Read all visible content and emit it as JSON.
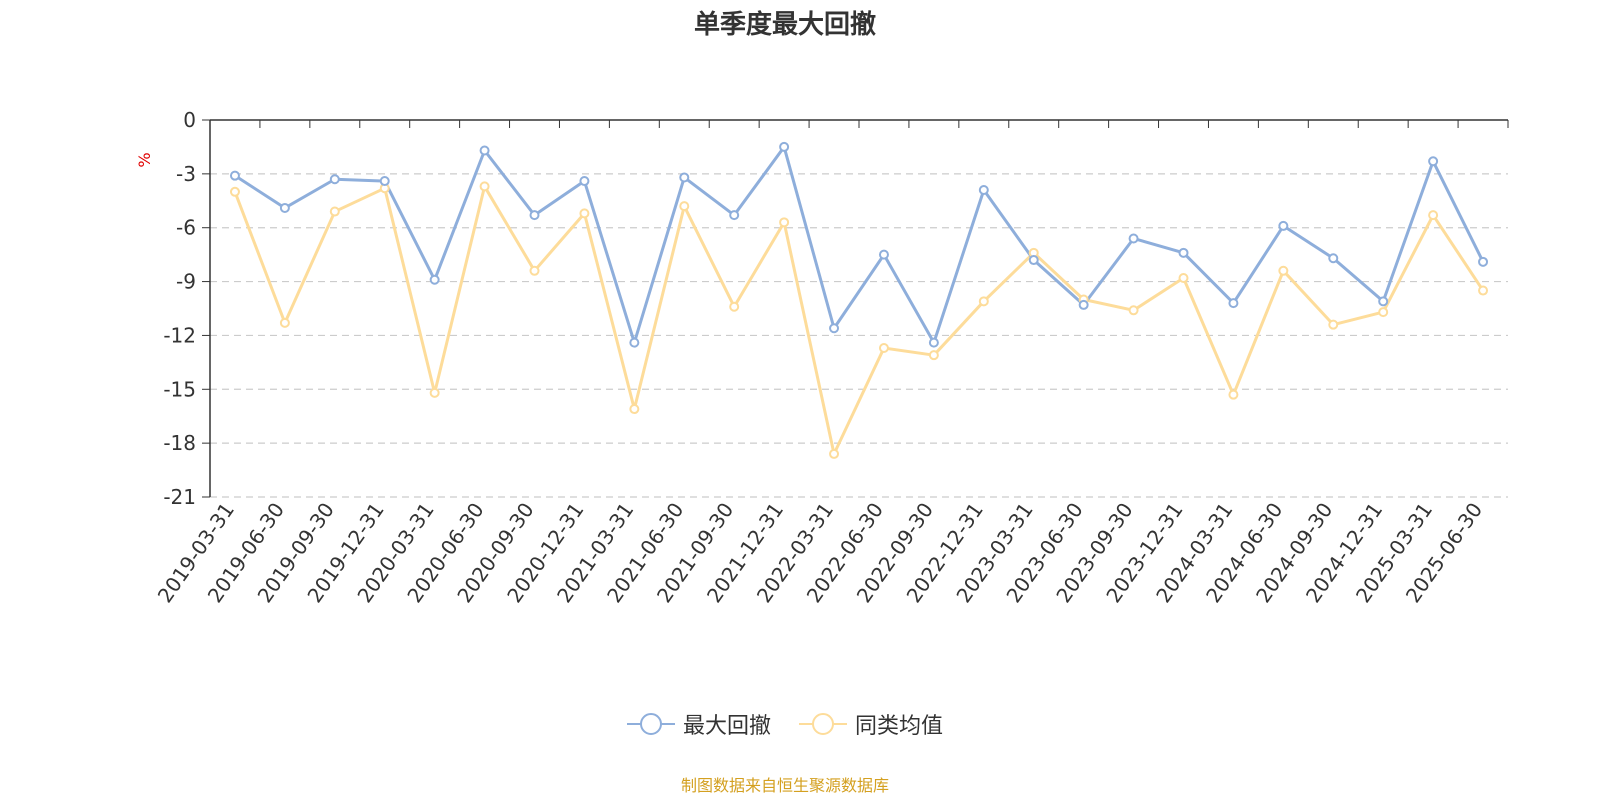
{
  "chart_data": {
    "type": "line",
    "title": "单季度最大回撤",
    "ylabel": "%",
    "ylim": [
      -21,
      0
    ],
    "yticks": [
      0,
      -3,
      -6,
      -9,
      -12,
      -15,
      -18,
      -21
    ],
    "grid": true,
    "legend_position": "bottom",
    "categories": [
      "2019-03-31",
      "2019-06-30",
      "2019-09-30",
      "2019-12-31",
      "2020-03-31",
      "2020-06-30",
      "2020-09-30",
      "2020-12-31",
      "2021-03-31",
      "2021-06-30",
      "2021-09-30",
      "2021-12-31",
      "2022-03-31",
      "2022-06-30",
      "2022-09-30",
      "2022-12-31",
      "2023-03-31",
      "2023-06-30",
      "2023-09-30",
      "2023-12-31",
      "2024-03-31",
      "2024-06-30",
      "2024-09-30",
      "2024-12-31",
      "2025-03-31",
      "2025-06-30"
    ],
    "series": [
      {
        "name": "最大回撤",
        "color": "#8eaedb",
        "values": [
          -3.1,
          -4.9,
          -3.3,
          -3.4,
          -8.9,
          -1.7,
          -5.3,
          -3.4,
          -12.4,
          -3.2,
          -5.3,
          -1.5,
          -11.6,
          -7.5,
          -12.4,
          -3.9,
          -7.8,
          -10.3,
          -6.6,
          -7.4,
          -10.2,
          -5.9,
          -7.7,
          -10.1,
          -2.3,
          -7.9
        ]
      },
      {
        "name": "同类均值",
        "color": "#fddc9a",
        "values": [
          -4.0,
          -11.3,
          -5.1,
          -3.8,
          -15.2,
          -3.7,
          -8.4,
          -5.2,
          -16.1,
          -4.8,
          -10.4,
          -5.7,
          -18.6,
          -12.7,
          -13.1,
          -10.1,
          -7.4,
          -10.0,
          -10.6,
          -8.8,
          -15.3,
          -8.4,
          -11.4,
          -10.7,
          -5.3,
          -9.5
        ]
      }
    ]
  },
  "source_text": "制图数据来自恒生聚源数据库"
}
